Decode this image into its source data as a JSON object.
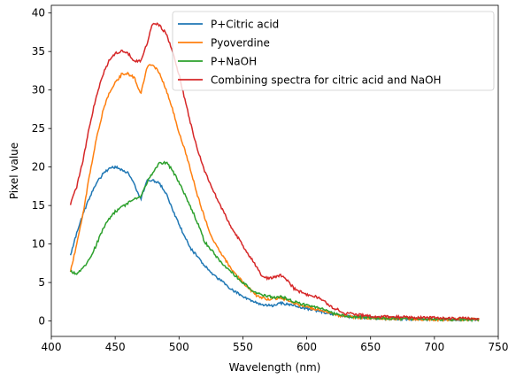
{
  "chart_data": {
    "type": "line",
    "title": "",
    "xlabel": "Wavelength (nm)",
    "ylabel": "Pixel value",
    "xlim": [
      400,
      750
    ],
    "ylim": [
      -2,
      41
    ],
    "xticks": [
      400,
      450,
      500,
      550,
      600,
      650,
      700,
      750
    ],
    "yticks": [
      0,
      5,
      10,
      15,
      20,
      25,
      30,
      35,
      40
    ],
    "grid": false,
    "legend_position": "top-right",
    "series": [
      {
        "name": "P+Citric acid",
        "color": "#1f77b4",
        "x": [
          415,
          420,
          425,
          430,
          435,
          440,
          445,
          450,
          455,
          460,
          465,
          470,
          475,
          480,
          485,
          490,
          495,
          500,
          505,
          510,
          515,
          520,
          525,
          530,
          540,
          550,
          560,
          565,
          570,
          575,
          580,
          590,
          600,
          610,
          620,
          630,
          650,
          700,
          735
        ],
        "y": [
          8.5,
          11.5,
          14,
          16,
          17.8,
          19,
          19.8,
          20,
          19.7,
          19.2,
          17.7,
          15.8,
          18.2,
          18.3,
          17.8,
          16.5,
          14.5,
          12.5,
          10.8,
          9.2,
          8.3,
          7.2,
          6.2,
          5.6,
          4.3,
          3.1,
          2.5,
          2.1,
          2.0,
          2.0,
          2.3,
          2.0,
          1.6,
          1.3,
          0.9,
          0.6,
          0.4,
          0.2,
          0.2
        ]
      },
      {
        "name": "Pyoverdine",
        "color": "#ff7f0e",
        "x": [
          415,
          420,
          425,
          430,
          435,
          440,
          445,
          450,
          455,
          460,
          465,
          470,
          475,
          480,
          485,
          490,
          495,
          500,
          505,
          510,
          515,
          520,
          525,
          530,
          540,
          550,
          560,
          565,
          570,
          575,
          580,
          590,
          600,
          610,
          620,
          630,
          650,
          700,
          735
        ],
        "y": [
          6.5,
          10,
          14,
          19,
          23.5,
          27,
          29.5,
          31,
          32,
          32.1,
          31.6,
          29.5,
          33,
          33.3,
          32,
          30,
          27.5,
          24.5,
          22,
          19,
          16,
          13.5,
          11,
          9.5,
          7.0,
          5.0,
          3.4,
          3.0,
          2.8,
          2.9,
          3.0,
          2.3,
          1.8,
          1.5,
          0.9,
          0.6,
          0.4,
          0.2,
          0.2
        ]
      },
      {
        "name": "P+NaOH",
        "color": "#2ca02c",
        "x": [
          415,
          418,
          420,
          425,
          430,
          435,
          440,
          445,
          450,
          455,
          460,
          465,
          470,
          475,
          480,
          485,
          490,
          495,
          500,
          505,
          510,
          515,
          520,
          525,
          530,
          540,
          550,
          560,
          570,
          575,
          580,
          590,
          600,
          610,
          620,
          630,
          650,
          700,
          735
        ],
        "y": [
          6.5,
          6.2,
          6.2,
          7.0,
          8.0,
          9.8,
          11.8,
          13.2,
          14.2,
          14.8,
          15.3,
          15.8,
          16.2,
          18,
          19.5,
          20.5,
          20.6,
          19.5,
          18,
          16.3,
          14.5,
          12.5,
          10.3,
          9.3,
          8.2,
          6.5,
          5.0,
          3.6,
          3.2,
          3.0,
          3.2,
          2.5,
          2.0,
          1.7,
          1.0,
          0.6,
          0.4,
          0.2,
          0.2
        ]
      },
      {
        "name": "Combining spectra for citric acid and NaOH",
        "color": "#d62728",
        "x": [
          415,
          420,
          425,
          430,
          435,
          440,
          445,
          450,
          455,
          460,
          465,
          470,
          475,
          478,
          480,
          485,
          490,
          495,
          500,
          505,
          510,
          515,
          520,
          525,
          530,
          540,
          550,
          560,
          565,
          570,
          575,
          580,
          585,
          590,
          600,
          610,
          620,
          630,
          650,
          700,
          735
        ],
        "y": [
          15.2,
          17.5,
          21,
          25.5,
          29,
          31.8,
          33.8,
          34.8,
          35.1,
          34.8,
          33.8,
          33.8,
          36,
          38,
          38.8,
          38.3,
          37.3,
          35,
          32,
          28.5,
          25,
          22,
          19.5,
          17.5,
          15.8,
          12.5,
          9.8,
          7.2,
          5.8,
          5.5,
          5.8,
          5.9,
          5.3,
          4.2,
          3.4,
          3.0,
          1.8,
          1.0,
          0.6,
          0.4,
          0.3
        ]
      }
    ]
  }
}
